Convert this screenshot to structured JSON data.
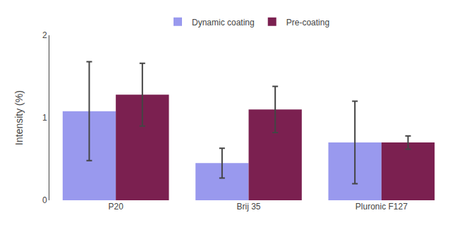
{
  "chart_data": {
    "type": "bar",
    "categories": [
      "P20",
      "Brij 35",
      "Pluronic F127"
    ],
    "series": [
      {
        "name": "Dynamic coating",
        "color": "#9999EE",
        "values": [
          1.08,
          0.45,
          0.7
        ],
        "errors": [
          0.6,
          0.18,
          0.5
        ]
      },
      {
        "name": "Pre-coating",
        "color": "#7B2050",
        "values": [
          1.28,
          1.1,
          0.7
        ],
        "errors": [
          0.38,
          0.28,
          0.08
        ]
      }
    ],
    "ylabel": "Intensity (%)",
    "ylim": [
      0,
      2.0
    ],
    "yticks": [
      0,
      1,
      2
    ],
    "grid": false,
    "legend": "top"
  }
}
